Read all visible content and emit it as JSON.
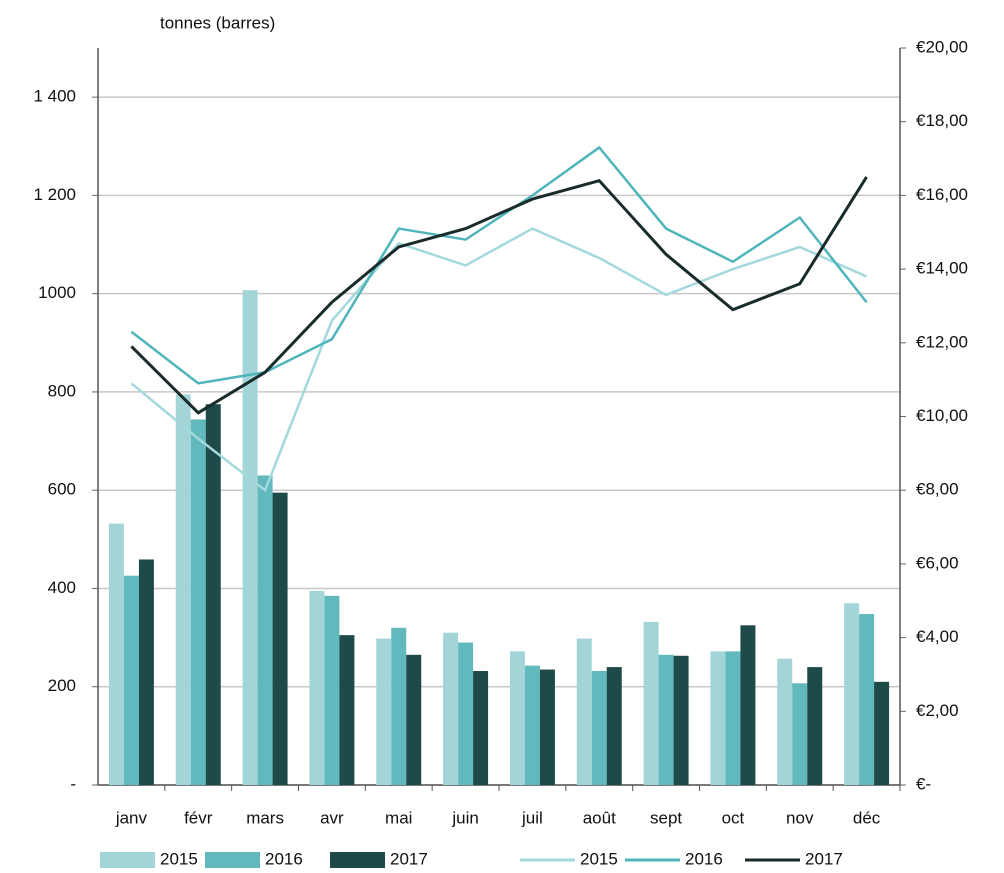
{
  "chart_data": {
    "type": "bar",
    "y_label": "tonnes (barres)",
    "categories": [
      "janv",
      "févr",
      "mars",
      "avr",
      "mai",
      "juin",
      "juil",
      "août",
      "sept",
      "oct",
      "nov",
      "déc"
    ],
    "ylim": [
      0,
      1500
    ],
    "yticks": [
      {
        "value": 0,
        "label": "-"
      },
      200,
      400,
      600,
      800,
      1000,
      {
        "value": 1200,
        "label": "1 200"
      },
      {
        "value": 1400,
        "label": "1 400"
      }
    ],
    "y2lim": [
      0,
      20
    ],
    "y2ticks": [
      {
        "value": 0,
        "label": "€-"
      },
      {
        "value": 2,
        "label": "€2,00"
      },
      {
        "value": 4,
        "label": "€4,00"
      },
      {
        "value": 6,
        "label": "€6,00"
      },
      {
        "value": 8,
        "label": "€8,00"
      },
      {
        "value": 10,
        "label": "€10,00"
      },
      {
        "value": 12,
        "label": "€12,00"
      },
      {
        "value": 14,
        "label": "€14,00"
      },
      {
        "value": 16,
        "label": "€16,00"
      },
      {
        "value": 18,
        "label": "€18,00"
      },
      {
        "value": 20,
        "label": "€20,00"
      }
    ],
    "grid": true,
    "series": [
      {
        "name": "2015",
        "type": "bar",
        "color": "#a3d5d8",
        "values": [
          532,
          795,
          1007,
          395,
          298,
          310,
          272,
          298,
          332,
          272,
          257,
          370
        ]
      },
      {
        "name": "2016",
        "type": "bar",
        "color": "#62b9bd",
        "values": [
          426,
          744,
          630,
          385,
          320,
          290,
          243,
          232,
          265,
          272,
          207,
          348
        ]
      },
      {
        "name": "2017",
        "type": "bar",
        "color": "#1f4a4a",
        "values": [
          459,
          775,
          595,
          305,
          265,
          232,
          235,
          240,
          263,
          325,
          240,
          210
        ]
      },
      {
        "name": "2015",
        "type": "line",
        "axis": "y2",
        "color": "#a3d9dc",
        "values": [
          10.9,
          9.4,
          8.0,
          12.6,
          14.7,
          14.1,
          15.1,
          14.3,
          13.3,
          14.0,
          14.6,
          13.8
        ]
      },
      {
        "name": "2016",
        "type": "line",
        "axis": "y2",
        "color": "#4fb5bb",
        "values": [
          12.3,
          10.9,
          11.2,
          12.1,
          15.1,
          14.8,
          16.0,
          17.3,
          15.1,
          14.2,
          15.4,
          13.1
        ]
      },
      {
        "name": "2017",
        "type": "line",
        "axis": "y2",
        "color": "#1a2b2b",
        "values": [
          11.9,
          10.1,
          11.2,
          13.1,
          14.6,
          15.1,
          15.9,
          16.4,
          14.4,
          12.9,
          13.6,
          16.5
        ]
      }
    ]
  }
}
